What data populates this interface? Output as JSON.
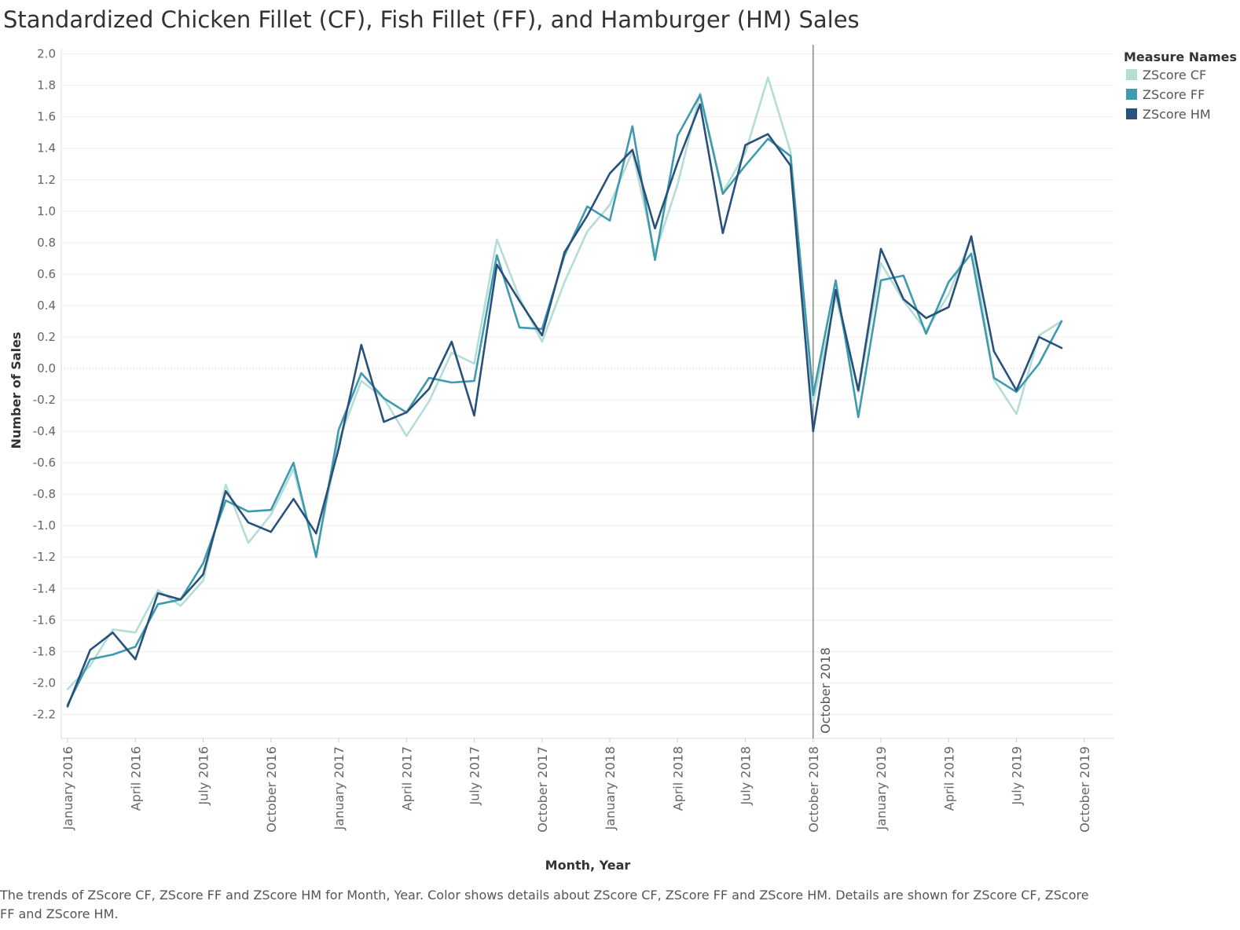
{
  "chart_data": {
    "type": "line",
    "title": "Standardized Chicken Fillet (CF), Fish Fillet (FF), and Hamburger (HM) Sales",
    "xlabel": "Month, Year",
    "ylabel": "Number of Sales",
    "ylim": [
      -2.3,
      2.0
    ],
    "yticks": [
      "2.0",
      "1.8",
      "1.6",
      "1.4",
      "1.2",
      "1.0",
      "0.8",
      "0.6",
      "0.4",
      "0.2",
      "0.0",
      "-0.2",
      "-0.4",
      "-0.6",
      "-0.8",
      "-1.0",
      "-1.2",
      "-1.4",
      "-1.6",
      "-1.8",
      "-2.0",
      "-2.2"
    ],
    "xticks": [
      "January 2016",
      "April 2016",
      "July 2016",
      "October 2016",
      "January 2017",
      "April 2017",
      "July 2017",
      "October 2017",
      "January 2018",
      "April 2018",
      "July 2018",
      "October 2018",
      "January 2019",
      "April 2019",
      "July 2019",
      "October 2019"
    ],
    "x": [
      "January 2016",
      "February 2016",
      "March 2016",
      "April 2016",
      "May 2016",
      "June 2016",
      "July 2016",
      "August 2016",
      "September 2016",
      "October 2016",
      "November 2016",
      "December 2016",
      "January 2017",
      "February 2017",
      "March 2017",
      "April 2017",
      "May 2017",
      "June 2017",
      "July 2017",
      "August 2017",
      "September 2017",
      "October 2017",
      "November 2017",
      "December 2017",
      "January 2018",
      "February 2018",
      "March 2018",
      "April 2018",
      "May 2018",
      "June 2018",
      "July 2018",
      "August 2018",
      "September 2018",
      "October 2018",
      "November 2018",
      "December 2018",
      "January 2019",
      "February 2019",
      "March 2019",
      "April 2019",
      "May 2019",
      "June 2019",
      "July 2019",
      "August 2019",
      "September 2019"
    ],
    "series": [
      {
        "name": "ZScore CF",
        "color": "#b3ddd6",
        "values": [
          -2.04,
          -1.89,
          -1.66,
          -1.68,
          -1.41,
          -1.51,
          -1.35,
          -0.74,
          -1.11,
          -0.93,
          -0.64,
          -1.19,
          -0.46,
          -0.08,
          -0.19,
          -0.43,
          -0.21,
          0.1,
          0.03,
          0.82,
          0.45,
          0.17,
          0.55,
          0.87,
          1.04,
          1.38,
          0.73,
          1.17,
          1.75,
          1.12,
          1.37,
          1.85,
          1.38,
          -0.22,
          0.46,
          -0.15,
          0.67,
          0.43,
          0.24,
          0.47,
          0.83,
          -0.07,
          -0.29,
          0.21,
          0.3
        ]
      },
      {
        "name": "ZScore FF",
        "color": "#3e9aac",
        "values": [
          -2.14,
          -1.85,
          -1.82,
          -1.77,
          -1.5,
          -1.47,
          -1.24,
          -0.84,
          -0.91,
          -0.9,
          -0.6,
          -1.2,
          -0.39,
          -0.03,
          -0.19,
          -0.28,
          -0.06,
          -0.09,
          -0.08,
          0.72,
          0.26,
          0.25,
          0.72,
          1.03,
          0.94,
          1.54,
          0.69,
          1.48,
          1.74,
          1.11,
          1.29,
          1.46,
          1.35,
          -0.17,
          0.56,
          -0.31,
          0.56,
          0.59,
          0.22,
          0.55,
          0.73,
          -0.06,
          -0.15,
          0.03,
          0.3
        ]
      },
      {
        "name": "ZScore HM",
        "color": "#28507a",
        "values": [
          -2.15,
          -1.79,
          -1.68,
          -1.85,
          -1.43,
          -1.47,
          -1.31,
          -0.78,
          -0.98,
          -1.04,
          -0.83,
          -1.05,
          -0.51,
          0.15,
          -0.34,
          -0.28,
          -0.13,
          0.17,
          -0.3,
          0.66,
          0.43,
          0.21,
          0.74,
          0.97,
          1.24,
          1.39,
          0.89,
          1.31,
          1.68,
          0.86,
          1.42,
          1.49,
          1.29,
          -0.4,
          0.5,
          -0.14,
          0.76,
          0.44,
          0.32,
          0.39,
          0.84,
          0.11,
          -0.14,
          0.2,
          0.13
        ]
      }
    ],
    "reference_line": {
      "x": "October 2018",
      "label": "October 2018"
    },
    "legend": {
      "title": "Measure Names",
      "position": "right-top"
    },
    "grid": true
  },
  "caption": "The trends of ZScore CF, ZScore FF and ZScore HM for Month, Year.  Color shows details about ZScore CF, ZScore FF and ZScore HM.  Details are shown for ZScore CF, ZScore FF and ZScore HM."
}
